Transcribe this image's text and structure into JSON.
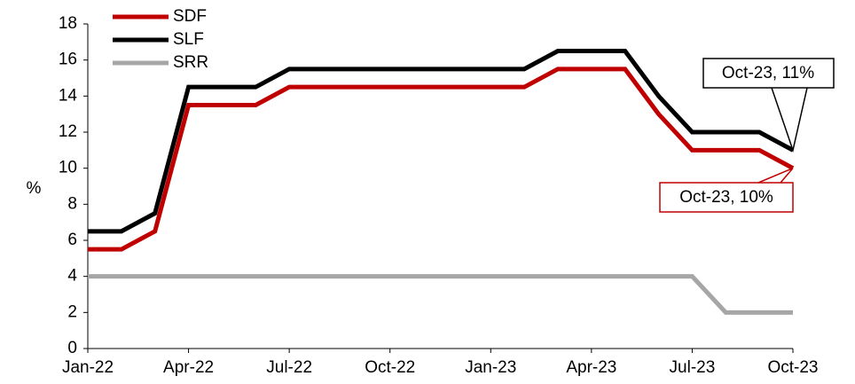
{
  "chart_data": {
    "type": "line",
    "y_label": "%",
    "categories": [
      "Jan-22",
      null,
      null,
      "Apr-22",
      null,
      null,
      "Jul-22",
      null,
      null,
      "Oct-22",
      null,
      null,
      "Jan-23",
      null,
      null,
      "Apr-23",
      null,
      null,
      "Jul-23",
      null,
      null,
      "Oct-23"
    ],
    "series": [
      {
        "name": "SDF",
        "color": "#c00000",
        "values": [
          5.5,
          5.5,
          6.5,
          13.5,
          13.5,
          13.5,
          14.5,
          14.5,
          14.5,
          14.5,
          14.5,
          14.5,
          14.5,
          14.5,
          15.5,
          15.5,
          15.5,
          13,
          11,
          11,
          11,
          10
        ]
      },
      {
        "name": "SLF",
        "color": "#000000",
        "values": [
          6.5,
          6.5,
          7.5,
          14.5,
          14.5,
          14.5,
          15.5,
          15.5,
          15.5,
          15.5,
          15.5,
          15.5,
          15.5,
          15.5,
          16.5,
          16.5,
          16.5,
          14,
          12,
          12,
          12,
          11
        ]
      },
      {
        "name": "SRR",
        "color": "#a6a6a6",
        "values": [
          4,
          4,
          4,
          4,
          4,
          4,
          4,
          4,
          4,
          4,
          4,
          4,
          4,
          4,
          4,
          4,
          4,
          4,
          4,
          2,
          2,
          2
        ]
      }
    ],
    "annotations": [
      "Oct-23, 11%",
      "Oct-23, 10%"
    ],
    "ylim": [
      0,
      18
    ],
    "yticks": [
      0,
      2,
      4,
      6,
      8,
      10,
      12,
      14,
      16,
      18
    ],
    "grid": false
  }
}
